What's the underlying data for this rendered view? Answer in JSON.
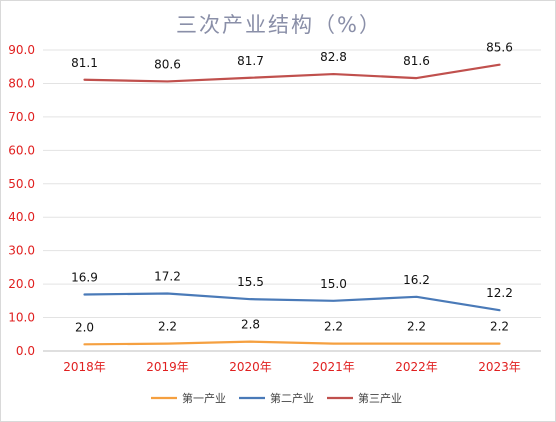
{
  "chart_data": {
    "type": "line",
    "title": "三次产业结构（%）",
    "categories": [
      "2018年",
      "2019年",
      "2020年",
      "2021年",
      "2022年",
      "2023年"
    ],
    "ylim": [
      0,
      90
    ],
    "yticks": [
      "0.0",
      "10.0",
      "20.0",
      "30.0",
      "40.0",
      "50.0",
      "60.0",
      "70.0",
      "80.0",
      "90.0"
    ],
    "grid": true,
    "legend_position": "bottom",
    "series": [
      {
        "name": "第一产业",
        "color": "#f5a040",
        "values": [
          2.0,
          2.2,
          2.8,
          2.2,
          2.2,
          2.2
        ],
        "labels": [
          "2.0",
          "2.2",
          "2.8",
          "2.2",
          "2.2",
          "2.2"
        ]
      },
      {
        "name": "第二产业",
        "color": "#4a7ab8",
        "values": [
          16.9,
          17.2,
          15.5,
          15.0,
          16.2,
          12.2
        ],
        "labels": [
          "16.9",
          "17.2",
          "15.5",
          "15.0",
          "16.2",
          "12.2"
        ]
      },
      {
        "name": "第三产业",
        "color": "#c0504d",
        "values": [
          81.1,
          80.6,
          81.7,
          82.8,
          81.6,
          85.6
        ],
        "labels": [
          "81.1",
          "80.6",
          "81.7",
          "82.8",
          "81.6",
          "85.6"
        ]
      }
    ]
  }
}
